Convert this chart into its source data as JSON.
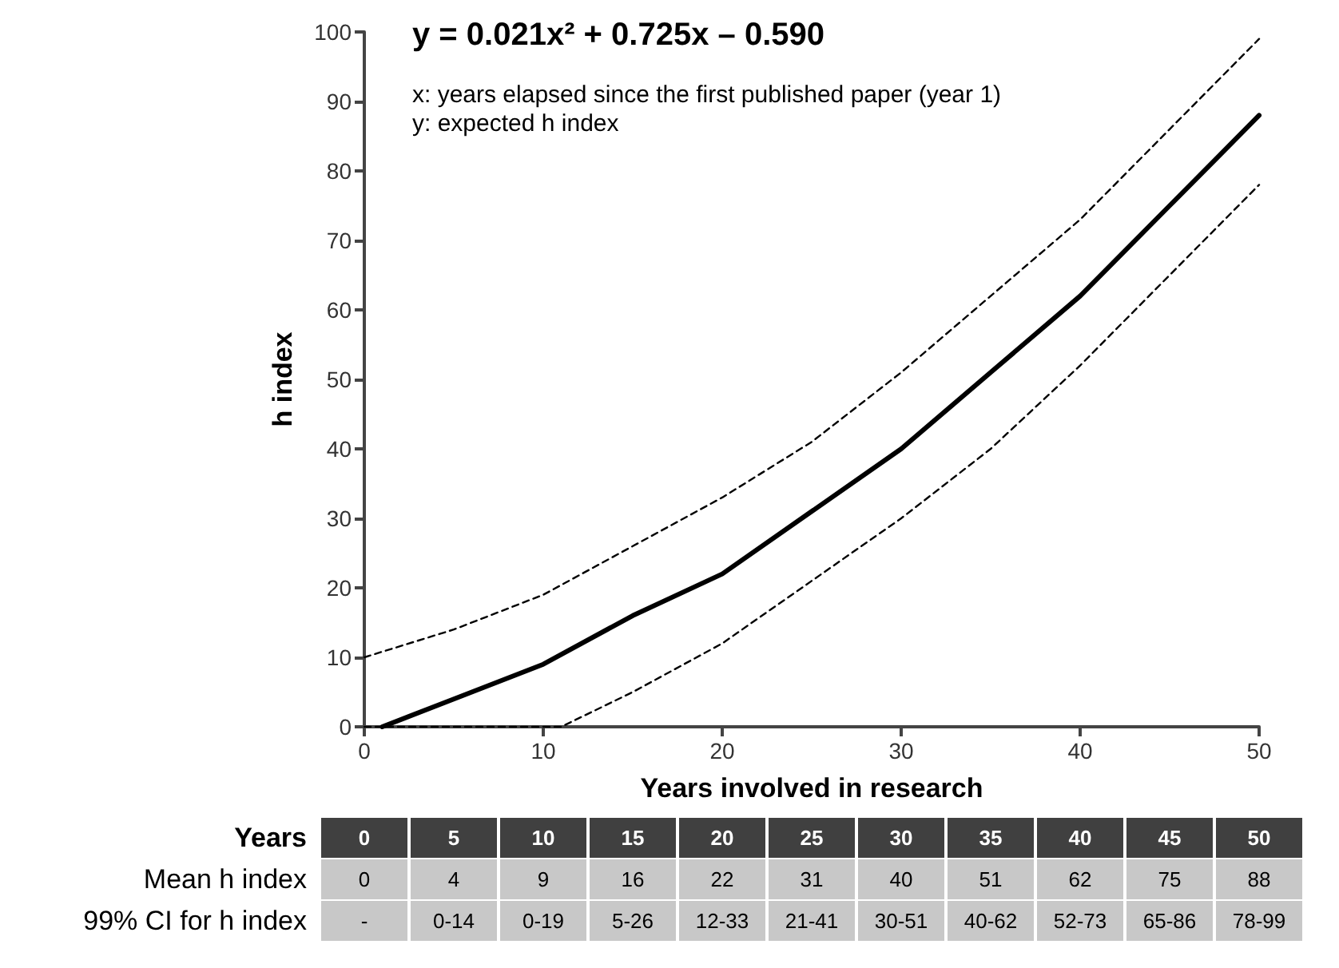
{
  "chart_data": [
    {
      "type": "line",
      "xlabel": "Years involved in research",
      "ylabel": "h index",
      "xlim": [
        0,
        50
      ],
      "xticks": [
        0,
        10,
        20,
        30,
        40,
        50
      ],
      "ylim": [
        0,
        100
      ],
      "yticks": [
        0,
        10,
        20,
        30,
        40,
        50,
        60,
        70,
        80,
        90,
        100
      ],
      "grid": false,
      "marker": "none",
      "annotations": [
        "y = 0.021x² + 0.725x – 0.590",
        "x: years elapsed since the first published paper (year 1)",
        "y: expected h index"
      ],
      "series": [
        {
          "color": "#000000",
          "line_style": "solid",
          "x": [
            1,
            5,
            10,
            15,
            20,
            25,
            30,
            35,
            40,
            45,
            50
          ],
          "values": [
            0,
            4,
            9,
            16,
            22,
            31,
            40,
            51,
            62,
            75,
            88
          ]
        },
        {
          "color": "#000000",
          "line_style": "dashed",
          "x": [
            0,
            5,
            10,
            15,
            20,
            25,
            30,
            35,
            40,
            45,
            50
          ],
          "values": [
            10,
            14,
            19,
            26,
            33,
            41,
            51,
            62,
            73,
            86,
            99
          ]
        },
        {
          "color": "#000000",
          "line_style": "dashed",
          "x": [
            0,
            11,
            15,
            20,
            25,
            30,
            35,
            40,
            45,
            50
          ],
          "values": [
            0,
            0,
            5,
            12,
            21,
            30,
            40,
            52,
            65,
            78
          ]
        }
      ]
    },
    {
      "type": "heatmap",
      "xlabel": "Years",
      "categories": [
        "0",
        "5",
        "10",
        "15",
        "20",
        "25",
        "30",
        "35",
        "40",
        "45",
        "50"
      ],
      "y_categories": [
        "Mean h index",
        "99% CI for h index"
      ],
      "cells": [
        [
          null,
          null,
          null,
          null,
          null,
          null,
          null,
          null,
          null,
          null,
          null
        ],
        [
          null,
          null,
          null,
          null,
          null,
          null,
          null,
          null,
          null,
          null,
          null
        ]
      ],
      "cell_labels": [
        [
          "0",
          "4",
          "9",
          "16",
          "22",
          "31",
          "40",
          "51",
          "62",
          "75",
          "88"
        ],
        [
          "-",
          "0-14",
          "0-19",
          "5-26",
          "12-33",
          "21-41",
          "30-51",
          "40-62",
          "52-73",
          "65-86",
          "78-99"
        ]
      ]
    }
  ]
}
